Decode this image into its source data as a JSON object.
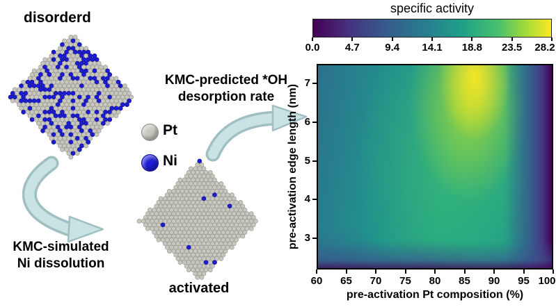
{
  "figure": {
    "disordered_label": "disorderd",
    "activated_label": "activated",
    "legend": {
      "pt_label": "Pt",
      "ni_label": "Ni"
    },
    "dissolution_arrow": {
      "line1": "KMC-simulated",
      "line2": "Ni dissolution"
    },
    "desorption_arrow": {
      "line1": "KMC-predicted *OH",
      "line2": "desorption rate"
    }
  },
  "colors": {
    "pt_sphere": "#c9c8c0",
    "ni_sphere": "#1c1cd6",
    "arrow_fill": "#c9e2e4",
    "arrow_outline": "#9fbfc1",
    "colormap_low": "#440154",
    "colormap_high": "#fde725"
  },
  "chart_data": {
    "type": "heatmap",
    "title": "specific activity",
    "xlabel": "pre-activation Pt composition (%)",
    "ylabel": "pre-activation edge length (nm)",
    "xlim": [
      60,
      100
    ],
    "ylim": [
      2.2,
      7.5
    ],
    "x_ticks": [
      60,
      65,
      70,
      75,
      80,
      85,
      90,
      95,
      100
    ],
    "y_ticks": [
      3,
      4,
      5,
      6,
      7
    ],
    "colorbar": {
      "label": "specific activity",
      "tick_labels": [
        "0.0",
        "4.7",
        "9.4",
        "14.1",
        "18.8",
        "23.5",
        "28.2"
      ],
      "range": [
        0,
        28.2
      ],
      "colormap": "viridis",
      "position": "top"
    },
    "grid_x": [
      60,
      65,
      70,
      75,
      80,
      85,
      90,
      95,
      100
    ],
    "grid_y": [
      3,
      4,
      5,
      6,
      7
    ],
    "values_estimated": true,
    "values": [
      [
        12,
        14,
        15,
        16,
        17,
        17,
        14,
        6,
        1
      ],
      [
        14,
        15,
        16,
        18,
        20,
        21,
        18,
        8,
        1.5
      ],
      [
        14.5,
        15.5,
        17,
        19,
        22,
        24,
        21,
        10,
        2
      ],
      [
        15,
        16,
        18,
        20,
        24,
        27,
        25,
        12,
        2
      ],
      [
        15,
        16,
        18,
        21,
        25,
        27.5,
        27,
        14,
        2
      ]
    ]
  }
}
